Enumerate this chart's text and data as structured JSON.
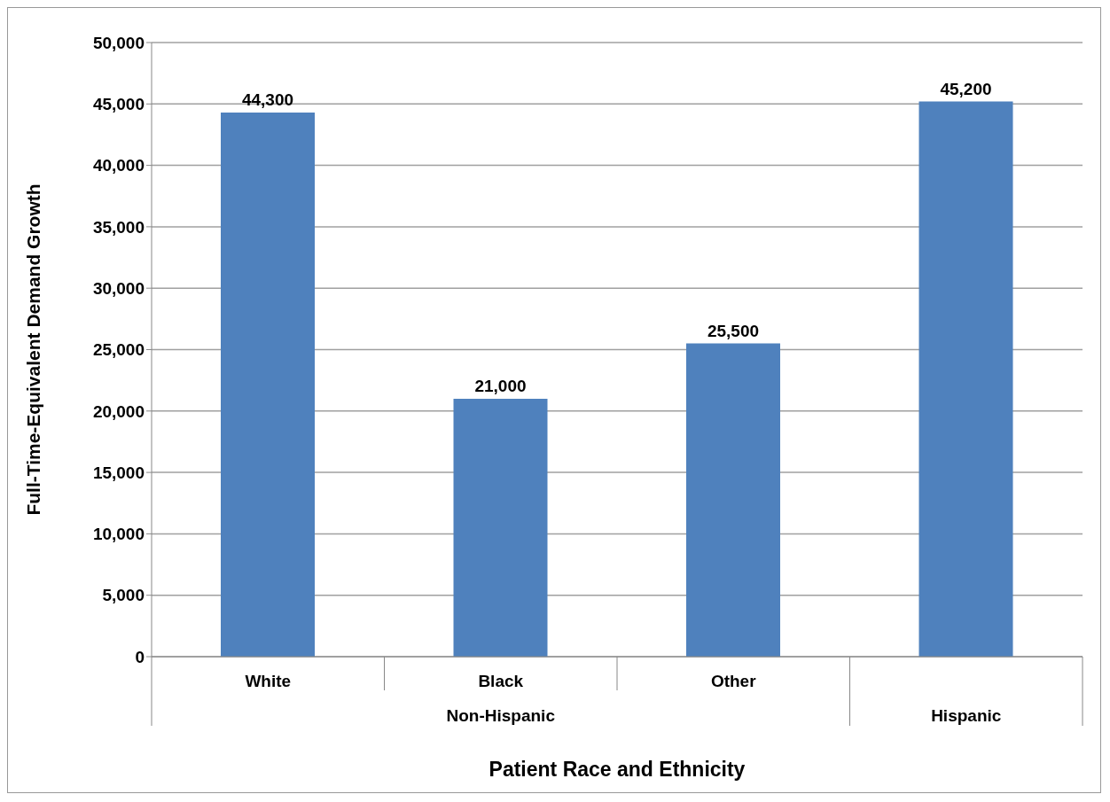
{
  "chart_data": {
    "type": "bar",
    "xlabel": "Patient Race and Ethnicity",
    "ylabel": "Full-Time-Equivalent Demand Growth",
    "categories": [
      "White",
      "Black",
      "Other",
      null
    ],
    "values": [
      44300,
      21000,
      25500,
      45200
    ],
    "color": "#4f81bd",
    "value_labels": [
      "44,300",
      "21,000",
      "25,500",
      "45,200"
    ],
    "annotations": [
      "Non-Hispanic",
      "Hispanic"
    ],
    "ylim": [
      0,
      50000
    ],
    "yticks": [
      {
        "value": 0,
        "label": "0"
      },
      {
        "value": 5000,
        "label": "5,000"
      },
      {
        "value": 10000,
        "label": "10,000"
      },
      {
        "value": 15000,
        "label": "15,000"
      },
      {
        "value": 20000,
        "label": "20,000"
      },
      {
        "value": 25000,
        "label": "25,000"
      },
      {
        "value": 30000,
        "label": "30,000"
      },
      {
        "value": 35000,
        "label": "35,000"
      },
      {
        "value": 40000,
        "label": "40,000"
      },
      {
        "value": 45000,
        "label": "45,000"
      },
      {
        "value": 50000,
        "label": "50,000"
      }
    ],
    "grid": "y"
  }
}
